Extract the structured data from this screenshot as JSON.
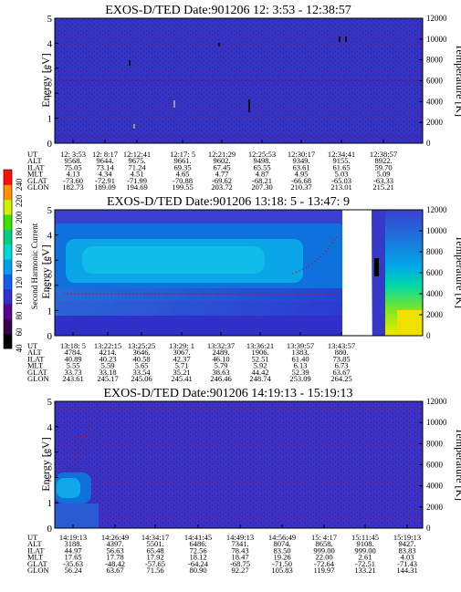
{
  "chart_data": [
    {
      "type": "heatmap",
      "title": "EXOS-D/TED   Date:901206  12: 3:53 - 12:38:57",
      "ylabel": "Energy [eV]",
      "y2label": "Temperature [K]",
      "yticks": [
        "0",
        "1",
        "2",
        "3",
        "4",
        "5"
      ],
      "y2ticks": [
        "0",
        "2000",
        "4000",
        "6000",
        "8000",
        "10000",
        "12000"
      ],
      "ylim": [
        0,
        5
      ],
      "y2lim": [
        0,
        12000
      ],
      "table": {
        "row_labels": [
          "UT",
          "ALT",
          "ILAT",
          "MLT",
          "GLAT",
          "GLON"
        ],
        "columns": [
          [
            "12: 3:53",
            "9568.",
            "75.05",
            "4.13",
            "-73.60",
            "182.73"
          ],
          [
            "12: 8:17",
            "9644.",
            "73.14",
            "4.34",
            "-72.91",
            "189.09"
          ],
          [
            "12:12:41",
            "9675.",
            "71.24",
            "4.51",
            "-71.99",
            "194.69"
          ],
          [
            "12:17: 5",
            "9661.",
            "69.35",
            "4.65",
            "-70.88",
            "199.55"
          ],
          [
            "12:21:29",
            "9602.",
            "67.45",
            "4.77",
            "-69.62",
            "203.72"
          ],
          [
            "12:25:53",
            "9498.",
            "65.55",
            "4.87",
            "-68.21",
            "207.30"
          ],
          [
            "12:30:17",
            "9349.",
            "63.61",
            "4.95",
            "-66.68",
            "210.37"
          ],
          [
            "12:34:41",
            "9155.",
            "61.65",
            "5.03",
            "-65.03",
            "213.01"
          ],
          [
            "12:38:57",
            "8922.",
            "59.70",
            "5.09",
            "-63.33",
            "215.21"
          ]
        ]
      }
    },
    {
      "type": "heatmap",
      "title": "EXOS-D/TED   Date:901206  13:18: 5 - 13:47: 9",
      "ylabel": "Energy [eV]",
      "y2label": "Temperature [K]",
      "yticks": [
        "0",
        "1",
        "2",
        "3",
        "4",
        "5"
      ],
      "y2ticks": [
        "0",
        "2000",
        "4000",
        "6000",
        "8000",
        "10000",
        "12000"
      ],
      "ylim": [
        0,
        5
      ],
      "y2lim": [
        0,
        12000
      ],
      "colorbar": {
        "label": "Second Harmonic Current",
        "ticks": [
          "40",
          "60",
          "80",
          "100",
          "120",
          "140",
          "160",
          "180",
          "200",
          "220",
          "240"
        ],
        "colors": [
          "#000000",
          "#3a0050",
          "#5a0090",
          "#3030d0",
          "#1060f0",
          "#00a0f0",
          "#00d8d8",
          "#00d080",
          "#40e000",
          "#d0f000",
          "#ff9000",
          "#ff1000"
        ]
      },
      "table": {
        "row_labels": [
          "UT",
          "ALT",
          "ILAT",
          "MLT",
          "GLAT",
          "GLON"
        ],
        "columns": [
          [
            "13:18: 5",
            "4784.",
            "40.89",
            "5.55",
            "33.73",
            "243.61"
          ],
          [
            "13:22:15",
            "4214.",
            "40.23",
            "5.59",
            "33.18",
            "245.17"
          ],
          [
            "13:25:25",
            "3646.",
            "40.58",
            "5.65",
            "33.54",
            "245.06"
          ],
          [
            "13:29: 1",
            "3067.",
            "42.37",
            "5.71",
            "35.21",
            "245.41"
          ],
          [
            "13:32:37",
            "2489.",
            "46.10",
            "5.79",
            "38.63",
            "246.46"
          ],
          [
            "13:36:21",
            "1906.",
            "52.51",
            "5.92",
            "44.42",
            "248.74"
          ],
          [
            "13:39:57",
            "1383.",
            "61.40",
            "6.13",
            "52.39",
            "253.09"
          ],
          [
            "13:43:57",
            "880.",
            "73.85",
            "6.73",
            "63.67",
            "264.25"
          ]
        ]
      }
    },
    {
      "type": "heatmap",
      "title": "EXOS-D/TED   Date:901206  14:19:13 - 15:19:13",
      "ylabel": "Energy [eV]",
      "y2label": "Temperature [K]",
      "yticks": [
        "0",
        "1",
        "2",
        "3",
        "4",
        "5"
      ],
      "y2ticks": [
        "0",
        "2000",
        "4000",
        "6000",
        "8000",
        "10000",
        "12000"
      ],
      "ylim": [
        0,
        5
      ],
      "y2lim": [
        0,
        12000
      ],
      "table": {
        "row_labels": [
          "UT",
          "ALT",
          "ILAT",
          "MLT",
          "GLAT",
          "GLON"
        ],
        "columns": [
          [
            "14:19:13",
            "3188.",
            "44.97",
            "17.65",
            "-35.63",
            "56.24"
          ],
          [
            "14:26:49",
            "4397.",
            "56.63",
            "17.78",
            "-48.42",
            "63.67"
          ],
          [
            "14:34:17",
            "5501.",
            "65.48",
            "17.92",
            "-57.65",
            "71.56"
          ],
          [
            "14:41:45",
            "6486.",
            "72.56",
            "18.12",
            "-64.24",
            "80.90"
          ],
          [
            "14:49:13",
            "7341.",
            "78.43",
            "18.47",
            "-68.75",
            "92.27"
          ],
          [
            "14:56:49",
            "8074.",
            "83.50",
            "19.26",
            "-71.50",
            "105.83"
          ],
          [
            "15: 4:17",
            "8658.",
            "999.00",
            "22.00",
            "-72.64",
            "119.97"
          ],
          [
            "15:11:45",
            "9108.",
            "999.00",
            "2.61",
            "-72.51",
            "133.21"
          ],
          [
            "15:19:13",
            "9427.",
            "83.83",
            "4.03",
            "-71.43",
            "144.31"
          ]
        ]
      }
    }
  ]
}
